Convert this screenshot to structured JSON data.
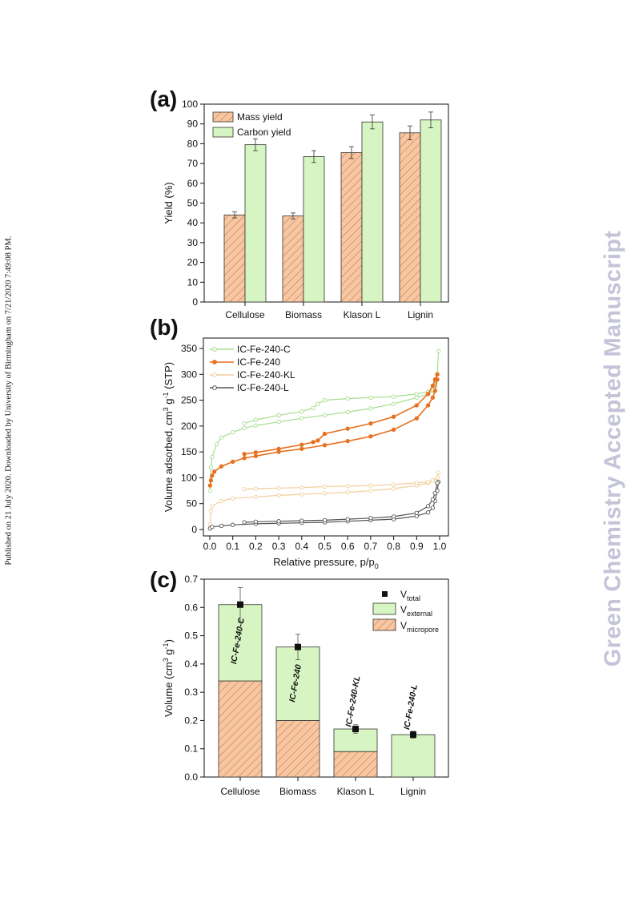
{
  "side_note": "Published on 21 July 2020. Downloaded by University of Birmingham on 7/21/2020 7:49:08 PM.",
  "watermark": "Green Chemistry Accepted Manuscript",
  "colors": {
    "mass": "#f6c7a1",
    "mass_hatch": "#c8694a",
    "carbon": "#d6f5c2",
    "green_line": "#a6dd8e",
    "orange_line": "#e8701f",
    "tan_line": "#f2cf9b",
    "black_line": "#555555"
  },
  "chart_data": [
    {
      "panel": "(a)",
      "type": "bar",
      "categories": [
        "Cellulose",
        "Biomass",
        "Klason L",
        "Lignin"
      ],
      "series": [
        {
          "name": "Mass yield",
          "values": [
            44,
            43.5,
            75.5,
            85.5
          ],
          "errors": [
            1.5,
            1.5,
            3,
            3.5
          ]
        },
        {
          "name": "Carbon yield",
          "values": [
            79.5,
            73.5,
            91,
            92
          ],
          "errors": [
            3,
            3,
            3.5,
            4
          ]
        }
      ],
      "ylabel": "Yield (%)",
      "ylim": [
        0,
        100
      ],
      "yticks": [
        "0",
        "10",
        "20",
        "30",
        "40",
        "50",
        "60",
        "70",
        "80",
        "90",
        "100"
      ],
      "legend": "top-left"
    },
    {
      "panel": "(b)",
      "type": "line",
      "xlabel": "Relative pressure, p/p",
      "xlabel_sub": "0",
      "ylabel": "Volume adsorbed, cm",
      "ylabel_sup": "3",
      "ylabel_mid": " g",
      "ylabel_sup2": "-1",
      "ylabel_end": " (STP)",
      "xlim": [
        0,
        1
      ],
      "ylim": [
        0,
        360
      ],
      "xticks": [
        "0.0",
        "0.1",
        "0.2",
        "0.3",
        "0.4",
        "0.5",
        "0.6",
        "0.7",
        "0.8",
        "0.9",
        "1.0"
      ],
      "yticks": [
        "0",
        "50",
        "100",
        "150",
        "200",
        "250",
        "300",
        "350"
      ],
      "legend": "top-left",
      "series": [
        {
          "name": "IC-Fe-240-C",
          "adsorption": [
            [
              0.001,
              75
            ],
            [
              0.005,
              120
            ],
            [
              0.01,
              140
            ],
            [
              0.03,
              165
            ],
            [
              0.05,
              178
            ],
            [
              0.1,
              188
            ],
            [
              0.15,
              196
            ],
            [
              0.2,
              201
            ],
            [
              0.3,
              208
            ],
            [
              0.4,
              215
            ],
            [
              0.5,
              221
            ],
            [
              0.6,
              227
            ],
            [
              0.7,
              234
            ],
            [
              0.8,
              243
            ],
            [
              0.9,
              255
            ],
            [
              0.95,
              262
            ],
            [
              0.97,
              268
            ],
            [
              0.98,
              278
            ],
            [
              0.99,
              300
            ],
            [
              0.995,
              345
            ]
          ],
          "desorption": [
            [
              0.99,
              300
            ],
            [
              0.97,
              270
            ],
            [
              0.95,
              266
            ],
            [
              0.9,
              262
            ],
            [
              0.8,
              257
            ],
            [
              0.7,
              255
            ],
            [
              0.6,
              253
            ],
            [
              0.5,
              250
            ],
            [
              0.47,
              243
            ],
            [
              0.45,
              235
            ],
            [
              0.4,
              228
            ],
            [
              0.3,
              221
            ],
            [
              0.2,
              212
            ],
            [
              0.15,
              205
            ]
          ]
        },
        {
          "name": "IC-Fe-240",
          "adsorption": [
            [
              0.001,
              85
            ],
            [
              0.005,
              95
            ],
            [
              0.01,
              104
            ],
            [
              0.02,
              112
            ],
            [
              0.05,
              122
            ],
            [
              0.1,
              131
            ],
            [
              0.15,
              138
            ],
            [
              0.2,
              142
            ],
            [
              0.3,
              150
            ],
            [
              0.4,
              156
            ],
            [
              0.5,
              163
            ],
            [
              0.6,
              171
            ],
            [
              0.7,
              180
            ],
            [
              0.8,
              193
            ],
            [
              0.9,
              215
            ],
            [
              0.95,
              240
            ],
            [
              0.97,
              255
            ],
            [
              0.98,
              268
            ],
            [
              0.99,
              290
            ]
          ],
          "desorption": [
            [
              0.99,
              300
            ],
            [
              0.98,
              290
            ],
            [
              0.97,
              278
            ],
            [
              0.95,
              262
            ],
            [
              0.9,
              240
            ],
            [
              0.8,
              218
            ],
            [
              0.7,
              205
            ],
            [
              0.6,
              195
            ],
            [
              0.5,
              185
            ],
            [
              0.47,
              172
            ],
            [
              0.45,
              169
            ],
            [
              0.4,
              164
            ],
            [
              0.3,
              156
            ],
            [
              0.2,
              149
            ],
            [
              0.15,
              146
            ]
          ]
        },
        {
          "name": "IC-Fe-240-KL",
          "adsorption": [
            [
              0.001,
              10
            ],
            [
              0.005,
              35
            ],
            [
              0.01,
              45
            ],
            [
              0.05,
              55
            ],
            [
              0.1,
              60
            ],
            [
              0.2,
              63
            ],
            [
              0.3,
              66
            ],
            [
              0.4,
              68
            ],
            [
              0.5,
              70
            ],
            [
              0.6,
              72
            ],
            [
              0.7,
              75
            ],
            [
              0.8,
              79
            ],
            [
              0.9,
              85
            ],
            [
              0.95,
              90
            ],
            [
              0.98,
              95
            ],
            [
              0.99,
              100
            ],
            [
              0.995,
              110
            ]
          ],
          "desorption": [
            [
              0.99,
              100
            ],
            [
              0.97,
              95
            ],
            [
              0.95,
              92
            ],
            [
              0.9,
              90
            ],
            [
              0.8,
              87
            ],
            [
              0.7,
              85
            ],
            [
              0.6,
              84
            ],
            [
              0.5,
              83
            ],
            [
              0.4,
              81
            ],
            [
              0.3,
              80
            ],
            [
              0.2,
              79
            ],
            [
              0.15,
              78
            ]
          ]
        },
        {
          "name": "IC-Fe-240-L",
          "adsorption": [
            [
              0.001,
              2
            ],
            [
              0.01,
              5
            ],
            [
              0.05,
              7
            ],
            [
              0.1,
              9
            ],
            [
              0.2,
              11
            ],
            [
              0.3,
              12
            ],
            [
              0.4,
              13
            ],
            [
              0.5,
              14
            ],
            [
              0.6,
              16
            ],
            [
              0.7,
              18
            ],
            [
              0.8,
              20
            ],
            [
              0.9,
              26
            ],
            [
              0.95,
              33
            ],
            [
              0.97,
              42
            ],
            [
              0.98,
              55
            ],
            [
              0.99,
              75
            ],
            [
              0.995,
              92
            ]
          ],
          "desorption": [
            [
              0.99,
              90
            ],
            [
              0.98,
              70
            ],
            [
              0.97,
              58
            ],
            [
              0.95,
              45
            ],
            [
              0.9,
              32
            ],
            [
              0.8,
              25
            ],
            [
              0.7,
              22
            ],
            [
              0.6,
              20
            ],
            [
              0.5,
              18
            ],
            [
              0.4,
              17
            ],
            [
              0.3,
              16
            ],
            [
              0.2,
              15
            ],
            [
              0.15,
              14
            ]
          ]
        }
      ]
    },
    {
      "panel": "(c)",
      "type": "bar",
      "stacked": true,
      "categories": [
        "Cellulose",
        "Biomass",
        "Klason L",
        "Lignin"
      ],
      "bar_labels": [
        "IC-Fe-240-C",
        "IC-Fe-240",
        "IC-Fe-240-KL",
        "IC-Fe-240-L"
      ],
      "series": [
        {
          "name": "V",
          "name_sub": "micropore",
          "values": [
            0.34,
            0.2,
            0.09,
            0
          ]
        },
        {
          "name": "V",
          "name_sub": "external",
          "values": [
            0.27,
            0.26,
            0.08,
            0.15
          ]
        }
      ],
      "points": {
        "name": "V",
        "name_sub": "total",
        "values": [
          0.61,
          0.46,
          0.17,
          0.15
        ],
        "errors": [
          0.06,
          0.045,
          0.015,
          0.012
        ]
      },
      "ylabel": "Volume (cm",
      "ylabel_sup": "3",
      "ylabel_mid": " g",
      "ylabel_sup2": "-1",
      "ylabel_end": ")",
      "ylim": [
        0,
        0.7
      ],
      "yticks": [
        "0.0",
        "0.1",
        "0.2",
        "0.3",
        "0.4",
        "0.5",
        "0.6",
        "0.7"
      ],
      "legend": "top-right"
    }
  ]
}
